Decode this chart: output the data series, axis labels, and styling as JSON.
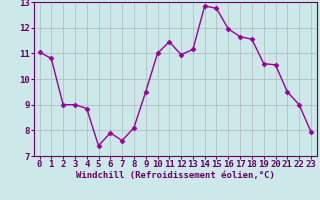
{
  "x": [
    0,
    1,
    2,
    3,
    4,
    5,
    6,
    7,
    8,
    9,
    10,
    11,
    12,
    13,
    14,
    15,
    16,
    17,
    18,
    19,
    20,
    21,
    22,
    23
  ],
  "y": [
    11.05,
    10.8,
    9.0,
    9.0,
    8.85,
    7.4,
    7.9,
    7.6,
    8.1,
    9.5,
    11.0,
    11.45,
    10.95,
    11.15,
    12.85,
    12.75,
    11.95,
    11.65,
    11.55,
    10.6,
    10.55,
    9.5,
    9.0,
    7.95
  ],
  "line_color": "#990099",
  "marker": "D",
  "marker_size": 2.5,
  "bg_color": "#cce8e8",
  "grid_color": "#aabbbb",
  "xlabel": "Windchill (Refroidissement éolien,°C)",
  "xlabel_fontsize": 6.5,
  "tick_fontsize": 6.5,
  "ylim": [
    7,
    13
  ],
  "xlim": [
    -0.5,
    23.5
  ],
  "yticks": [
    7,
    8,
    9,
    10,
    11,
    12,
    13
  ],
  "xticks": [
    0,
    1,
    2,
    3,
    4,
    5,
    6,
    7,
    8,
    9,
    10,
    11,
    12,
    13,
    14,
    15,
    16,
    17,
    18,
    19,
    20,
    21,
    22,
    23
  ],
  "line_width": 1.0,
  "spine_color": "#660066",
  "tick_color": "#660066"
}
